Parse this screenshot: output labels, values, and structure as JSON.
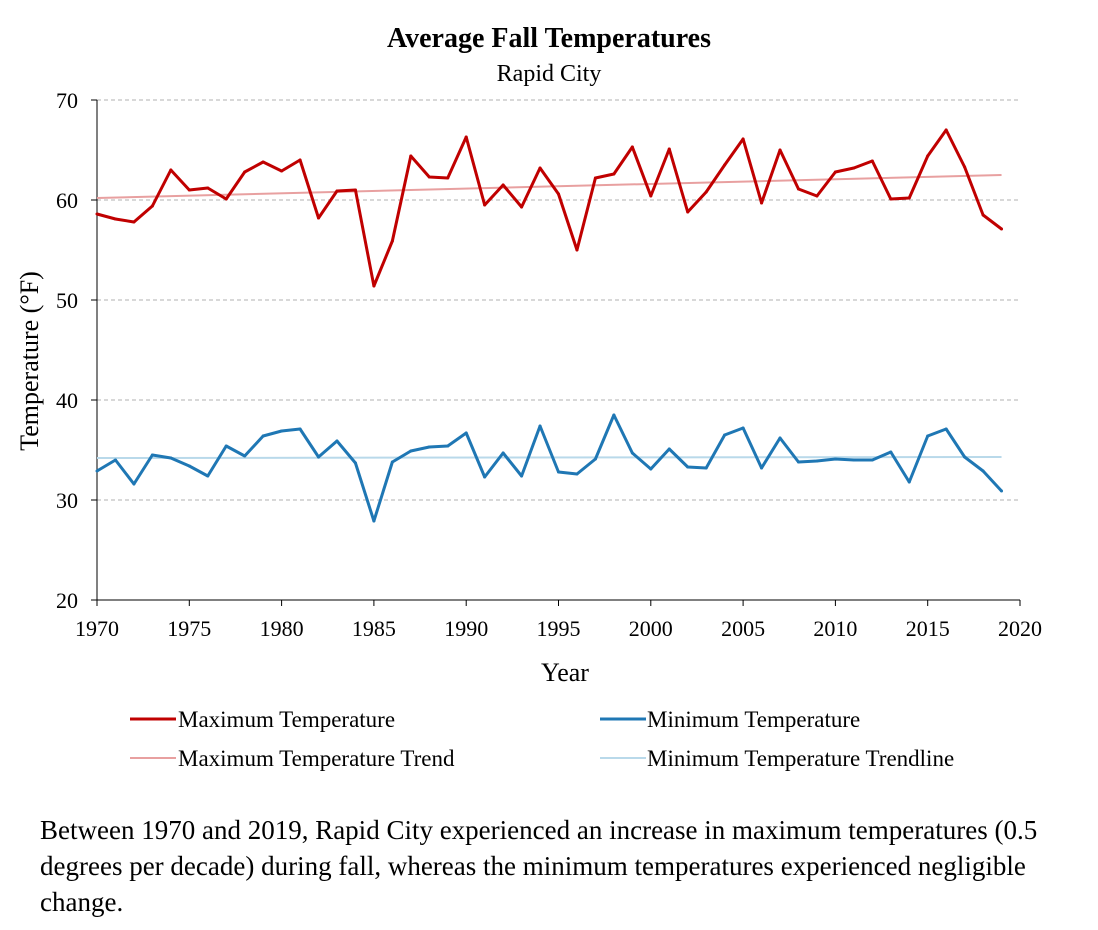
{
  "chart_data": {
    "type": "line",
    "title": "Average Fall Temperatures",
    "subtitle": "Rapid City",
    "xlabel": "Year",
    "ylabel": "Temperature (°F)",
    "xlim": [
      1970,
      2020
    ],
    "ylim": [
      20,
      70
    ],
    "x_ticks": [
      1970,
      1975,
      1980,
      1985,
      1990,
      1995,
      2000,
      2005,
      2010,
      2015,
      2020
    ],
    "y_ticks": [
      20,
      30,
      40,
      50,
      60,
      70
    ],
    "grid": "horizontal dashed",
    "legend_position": "bottom",
    "x": [
      1970,
      1971,
      1972,
      1973,
      1974,
      1975,
      1976,
      1977,
      1978,
      1979,
      1980,
      1981,
      1982,
      1983,
      1984,
      1985,
      1986,
      1987,
      1988,
      1989,
      1990,
      1991,
      1992,
      1993,
      1994,
      1995,
      1996,
      1997,
      1998,
      1999,
      2000,
      2001,
      2002,
      2003,
      2004,
      2005,
      2006,
      2007,
      2008,
      2009,
      2010,
      2011,
      2012,
      2013,
      2014,
      2015,
      2016,
      2017,
      2018,
      2019
    ],
    "series": [
      {
        "name": "Maximum Temperature",
        "color": "#c00000",
        "style": "thick",
        "values": [
          58.6,
          58.1,
          57.8,
          59.4,
          63.0,
          61.0,
          61.2,
          60.1,
          62.8,
          63.8,
          62.9,
          64.0,
          58.2,
          60.9,
          61.0,
          51.4,
          55.9,
          64.4,
          62.3,
          62.2,
          66.3,
          59.5,
          61.5,
          59.3,
          63.2,
          60.6,
          55.0,
          62.2,
          62.6,
          65.3,
          60.4,
          65.1,
          58.8,
          60.8,
          63.5,
          66.1,
          59.7,
          65.0,
          61.1,
          60.4,
          62.8,
          63.2,
          63.9,
          60.1,
          60.2,
          64.4,
          67.0,
          63.3,
          58.5,
          57.1
        ]
      },
      {
        "name": "Minimum Temperature",
        "color": "#1f77b4",
        "style": "thick",
        "values": [
          32.9,
          34.0,
          31.6,
          34.5,
          34.2,
          33.4,
          32.4,
          35.4,
          34.4,
          36.4,
          36.9,
          37.1,
          34.3,
          35.9,
          33.7,
          27.9,
          33.8,
          34.9,
          35.3,
          35.4,
          36.7,
          32.3,
          34.7,
          32.4,
          37.4,
          32.8,
          32.6,
          34.1,
          38.5,
          34.7,
          33.1,
          35.1,
          33.3,
          33.2,
          36.5,
          37.2,
          33.2,
          36.2,
          33.8,
          33.9,
          34.1,
          34.0,
          34.0,
          34.8,
          31.8,
          36.4,
          37.1,
          34.3,
          32.9,
          30.9
        ]
      },
      {
        "name": "Maximum Temperature Trend",
        "color": "#e8a0a0",
        "style": "thin",
        "trend": {
          "x": [
            1970,
            2019
          ],
          "y": [
            60.2,
            62.5
          ]
        }
      },
      {
        "name": "Minimum Temperature Trendline",
        "color": "#b9d9ea",
        "style": "thin",
        "trend": {
          "x": [
            1970,
            2019
          ],
          "y": [
            34.2,
            34.3
          ]
        }
      }
    ]
  },
  "caption": "Between 1970 and 2019, Rapid City experienced an increase in maximum temperatures (0.5 degrees per decade) during fall, whereas the minimum temperatures experienced negligible change."
}
